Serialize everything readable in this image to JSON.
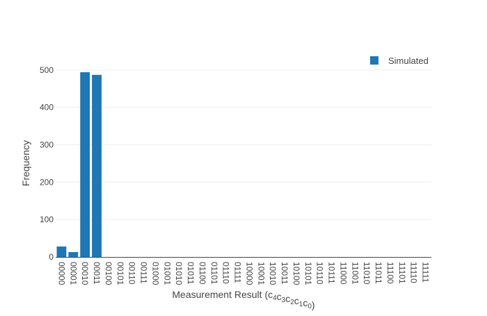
{
  "chart_data": {
    "type": "bar",
    "title": "",
    "xlabel": "Measurement Result (c",
    "xlabel_parts": [
      {
        "text": "Measurement Result (c",
        "sub": false
      },
      {
        "text": "4",
        "sub": true
      },
      {
        "text": "c",
        "sub": false
      },
      {
        "text": "3",
        "sub": true
      },
      {
        "text": "c",
        "sub": false
      },
      {
        "text": "2",
        "sub": true
      },
      {
        "text": "c",
        "sub": false
      },
      {
        "text": "1",
        "sub": true
      },
      {
        "text": "c",
        "sub": false
      },
      {
        "text": "0",
        "sub": true
      },
      {
        "text": ")",
        "sub": false
      }
    ],
    "ylabel": "Frequency",
    "ylim": [
      0,
      520
    ],
    "yticks": [
      0,
      100,
      200,
      300,
      400,
      500
    ],
    "grid": true,
    "legend_position": "top-right",
    "bar_color": "#1f77b4",
    "categories": [
      "00000",
      "00001",
      "00010",
      "00011",
      "00100",
      "00101",
      "00110",
      "00111",
      "01000",
      "01001",
      "01010",
      "01011",
      "01100",
      "01101",
      "01110",
      "01111",
      "10000",
      "10001",
      "10010",
      "10011",
      "10100",
      "10101",
      "10110",
      "10111",
      "11000",
      "11001",
      "11010",
      "11011",
      "11100",
      "11101",
      "11110",
      "11111"
    ],
    "series": [
      {
        "name": "Simulated",
        "values": [
          28,
          13,
          494,
          487,
          0,
          0,
          0,
          0,
          0,
          0,
          0,
          0,
          0,
          0,
          0,
          0,
          0,
          0,
          0,
          0,
          0,
          0,
          0,
          0,
          0,
          0,
          0,
          0,
          0,
          0,
          0,
          0
        ]
      }
    ]
  }
}
